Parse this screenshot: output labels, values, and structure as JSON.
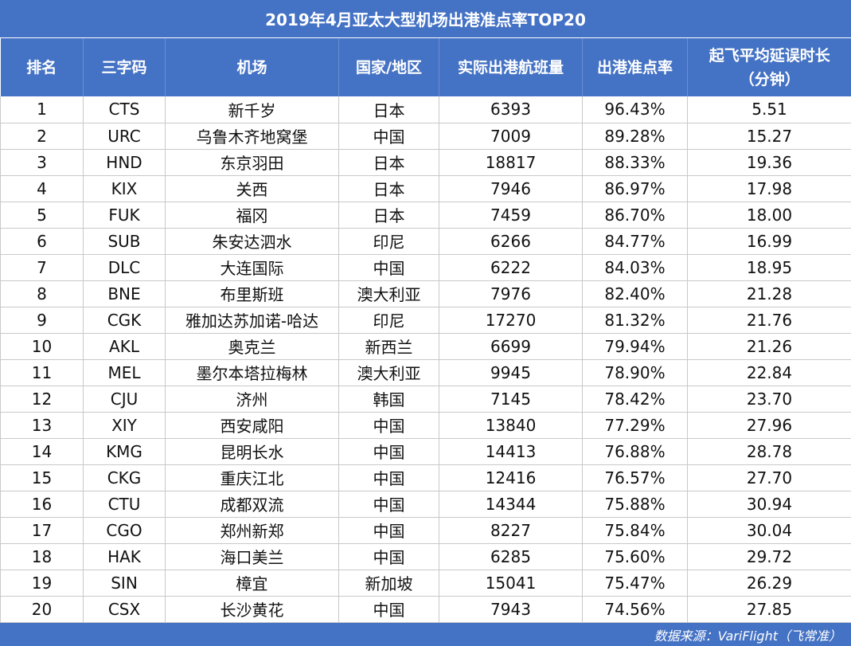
{
  "title": "2019年4月亚太大型机场出港准点率TOP20",
  "headers": [
    "排名",
    "三字码",
    "机场",
    "国家/地区",
    "实际出港航班量",
    "出港准点率",
    "起飞平均延误时长\n（分钟）"
  ],
  "rows": [
    [
      "1",
      "CTS",
      "新千岁",
      "日本",
      "6393",
      "96.43%",
      "5.51"
    ],
    [
      "2",
      "URC",
      "乌鲁木齐地窝堡",
      "中国",
      "7009",
      "89.28%",
      "15.27"
    ],
    [
      "3",
      "HND",
      "东京羽田",
      "日本",
      "18817",
      "88.33%",
      "19.36"
    ],
    [
      "4",
      "KIX",
      "关西",
      "日本",
      "7946",
      "86.97%",
      "17.98"
    ],
    [
      "5",
      "FUK",
      "福冈",
      "日本",
      "7459",
      "86.70%",
      "18.00"
    ],
    [
      "6",
      "SUB",
      "朱安达泗水",
      "印尼",
      "6266",
      "84.77%",
      "16.99"
    ],
    [
      "7",
      "DLC",
      "大连国际",
      "中国",
      "6222",
      "84.03%",
      "18.95"
    ],
    [
      "8",
      "BNE",
      "布里斯班",
      "澳大利亚",
      "7976",
      "82.40%",
      "21.28"
    ],
    [
      "9",
      "CGK",
      "雅加达苏加诺-哈达",
      "印尼",
      "17270",
      "81.32%",
      "21.76"
    ],
    [
      "10",
      "AKL",
      "奥克兰",
      "新西兰",
      "6699",
      "79.94%",
      "21.26"
    ],
    [
      "11",
      "MEL",
      "墨尔本塔拉梅林",
      "澳大利亚",
      "9945",
      "78.90%",
      "22.84"
    ],
    [
      "12",
      "CJU",
      "济州",
      "韩国",
      "7145",
      "78.42%",
      "23.70"
    ],
    [
      "13",
      "XIY",
      "西安咸阳",
      "中国",
      "13840",
      "77.29%",
      "27.96"
    ],
    [
      "14",
      "KMG",
      "昆明长水",
      "中国",
      "14413",
      "76.88%",
      "28.78"
    ],
    [
      "15",
      "CKG",
      "重庆江北",
      "中国",
      "12416",
      "76.57%",
      "27.70"
    ],
    [
      "16",
      "CTU",
      "成都双流",
      "中国",
      "14344",
      "75.88%",
      "30.94"
    ],
    [
      "17",
      "CGO",
      "郑州新郑",
      "中国",
      "8227",
      "75.84%",
      "30.04"
    ],
    [
      "18",
      "HAK",
      "海口美兰",
      "中国",
      "6285",
      "75.60%",
      "29.72"
    ],
    [
      "19",
      "SIN",
      "樟宜",
      "新加坡",
      "15041",
      "75.47%",
      "26.29"
    ],
    [
      "20",
      "CSX",
      "长沙黄花",
      "中国",
      "7943",
      "74.56%",
      "27.85"
    ]
  ],
  "footer": "数据来源：VariFlight（飞常准）",
  "colors": {
    "header_bg": "#4472c4",
    "header_text": "#ffffff",
    "grid": "#c9c9c9"
  }
}
